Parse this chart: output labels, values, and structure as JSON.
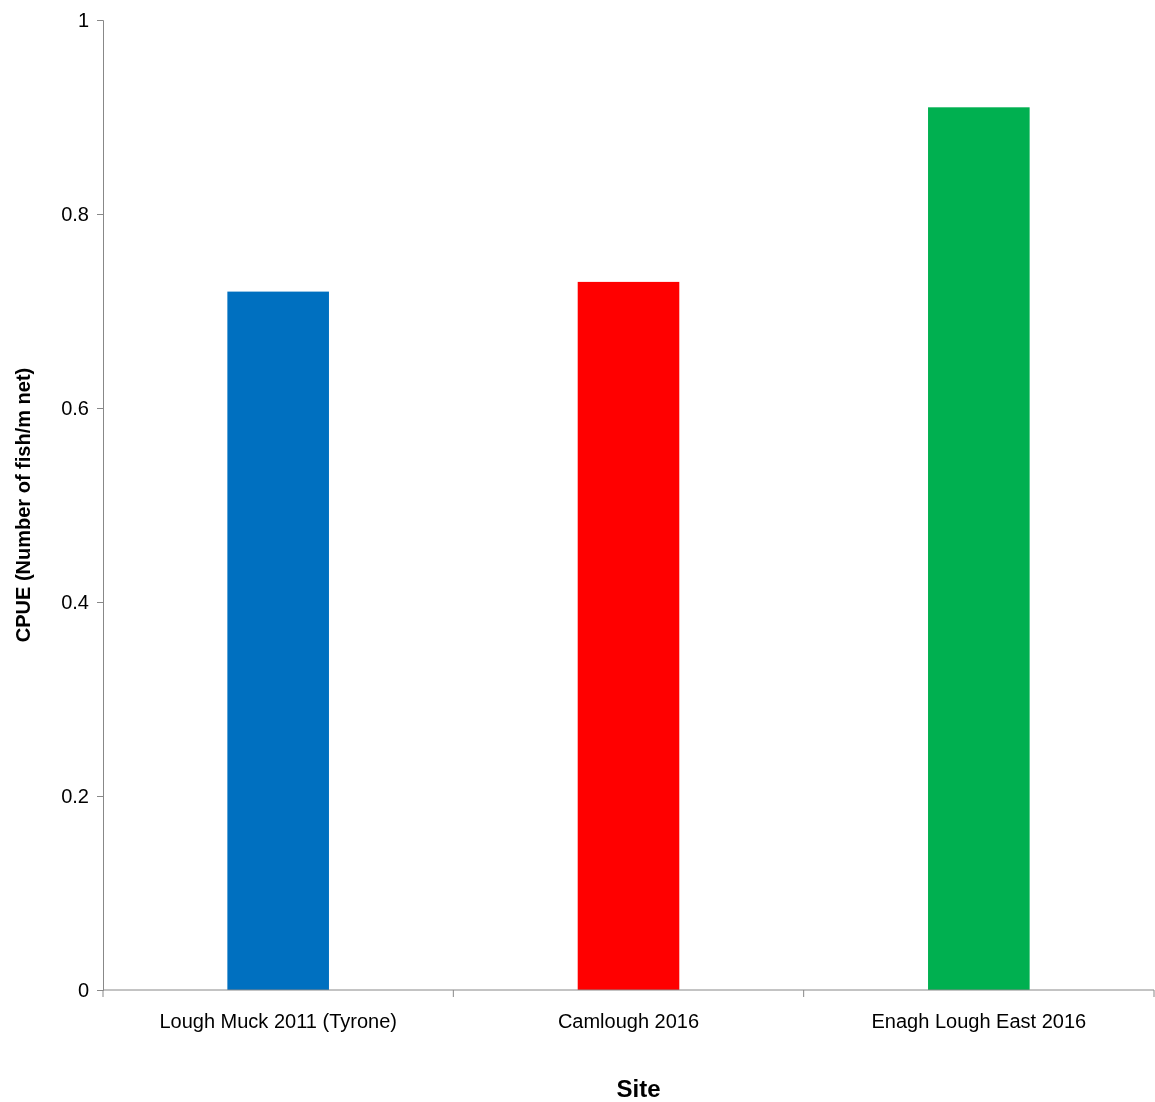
{
  "chart_data": {
    "type": "bar",
    "categories": [
      "Lough Muck 2011 (Tyrone)",
      "Camlough 2016",
      "Enagh Lough East 2016"
    ],
    "values": [
      0.72,
      0.73,
      0.91
    ],
    "colors": [
      "#0070c0",
      "#ff0000",
      "#00b050"
    ],
    "xlabel": "Site",
    "ylabel": "CPUE (Number of fish/m net)",
    "ylim": [
      0,
      1
    ],
    "yticks": [
      0,
      0.2,
      0.4,
      0.6,
      0.8,
      1
    ]
  }
}
